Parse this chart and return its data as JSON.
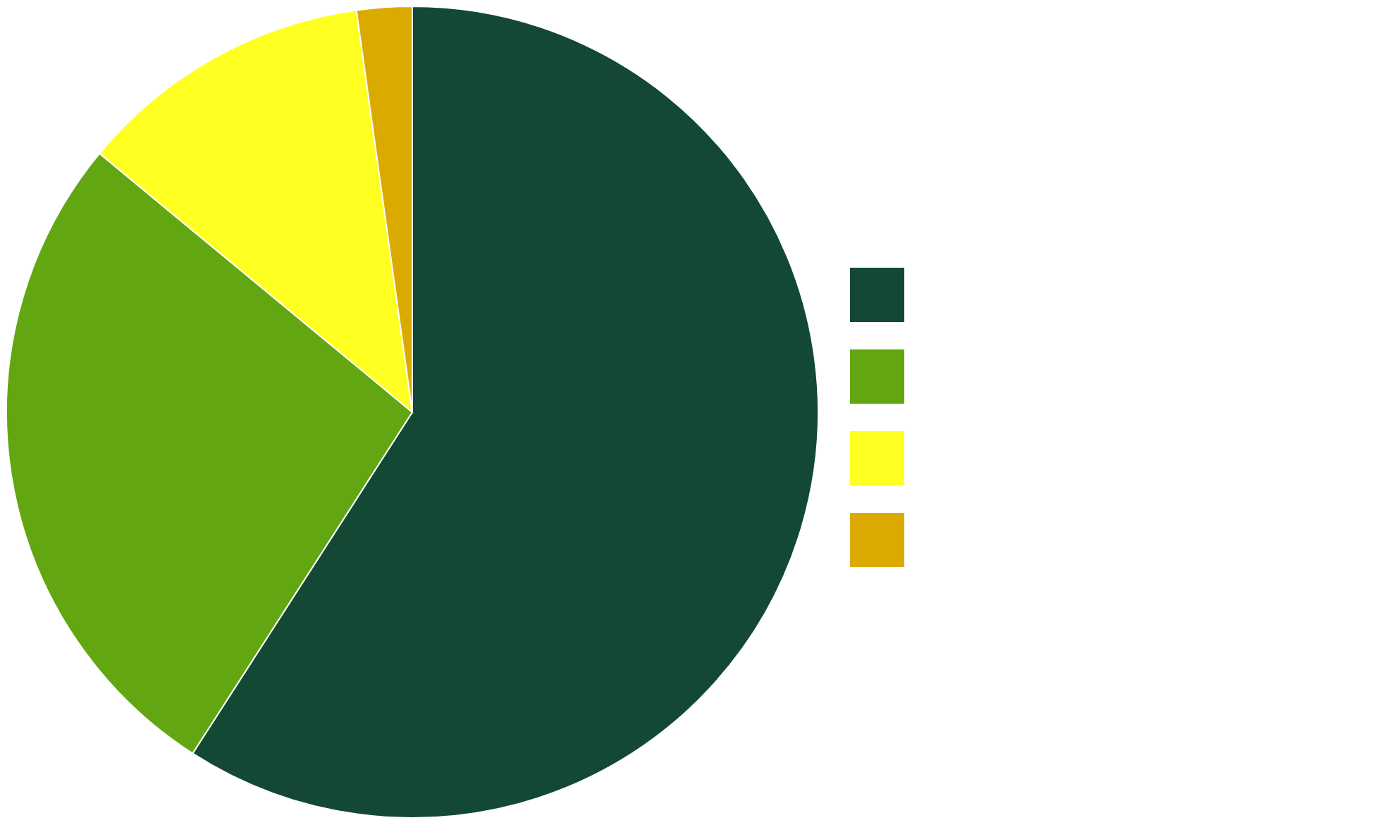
{
  "chart_data": {
    "type": "pie",
    "categories": [
      null,
      null,
      null,
      null
    ],
    "values": [
      59.1,
      26.9,
      11.8,
      2.2
    ],
    "colors": [
      "#134835",
      "#62a711",
      "#ffff22",
      "#dbaa00"
    ]
  }
}
